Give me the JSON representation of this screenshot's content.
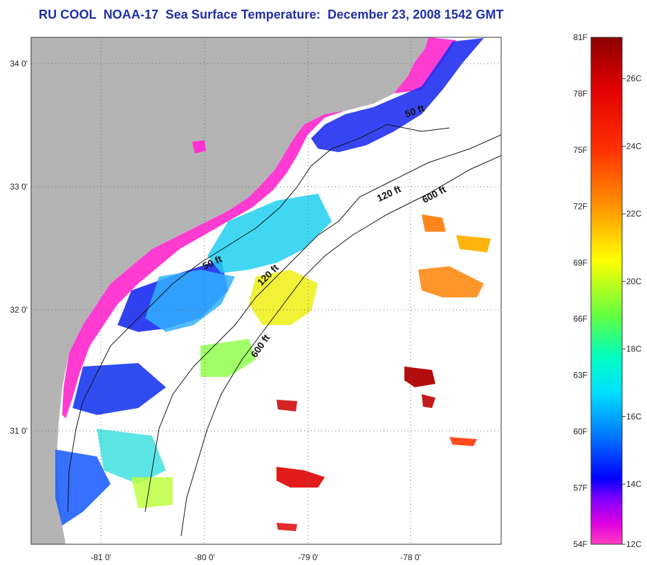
{
  "title": "RU COOL  NOAA-17  Sea Surface Temperature:  December 23, 2008 1542 GMT",
  "map": {
    "lon_ticks": [
      "-81 0'",
      "-80 0'",
      "-79 0'",
      "-78 0'"
    ],
    "lat_ticks": [
      "34 0'",
      "33 0'",
      "32 0'",
      "31 0'"
    ],
    "contours": [
      {
        "label": "50 ft",
        "rotation": -20
      },
      {
        "label": "50 ft",
        "rotation": -25
      },
      {
        "label": "120 ft",
        "rotation": -25
      },
      {
        "label": "120 ft",
        "rotation": -45
      },
      {
        "label": "600 ft",
        "rotation": -28
      },
      {
        "label": "600 ft",
        "rotation": -55
      }
    ],
    "land_color": "#b4b4b4",
    "background_color": "#ffffff"
  },
  "colorbar": {
    "fahrenheit_labels": [
      "81F",
      "78F",
      "75F",
      "72F",
      "69F",
      "66F",
      "63F",
      "60F",
      "57F",
      "54F"
    ],
    "celsius_labels": [
      "26C",
      "24C",
      "22C",
      "20C",
      "18C",
      "16C",
      "14C",
      "12C"
    ],
    "min_f": 54,
    "max_f": 81,
    "gradient_stops": [
      "#8b0000",
      "#ff0000",
      "#ff8000",
      "#ffff00",
      "#80ff40",
      "#00ffff",
      "#0080ff",
      "#0000ff",
      "#8000ff",
      "#ff00c0",
      "#ff40c0"
    ]
  }
}
